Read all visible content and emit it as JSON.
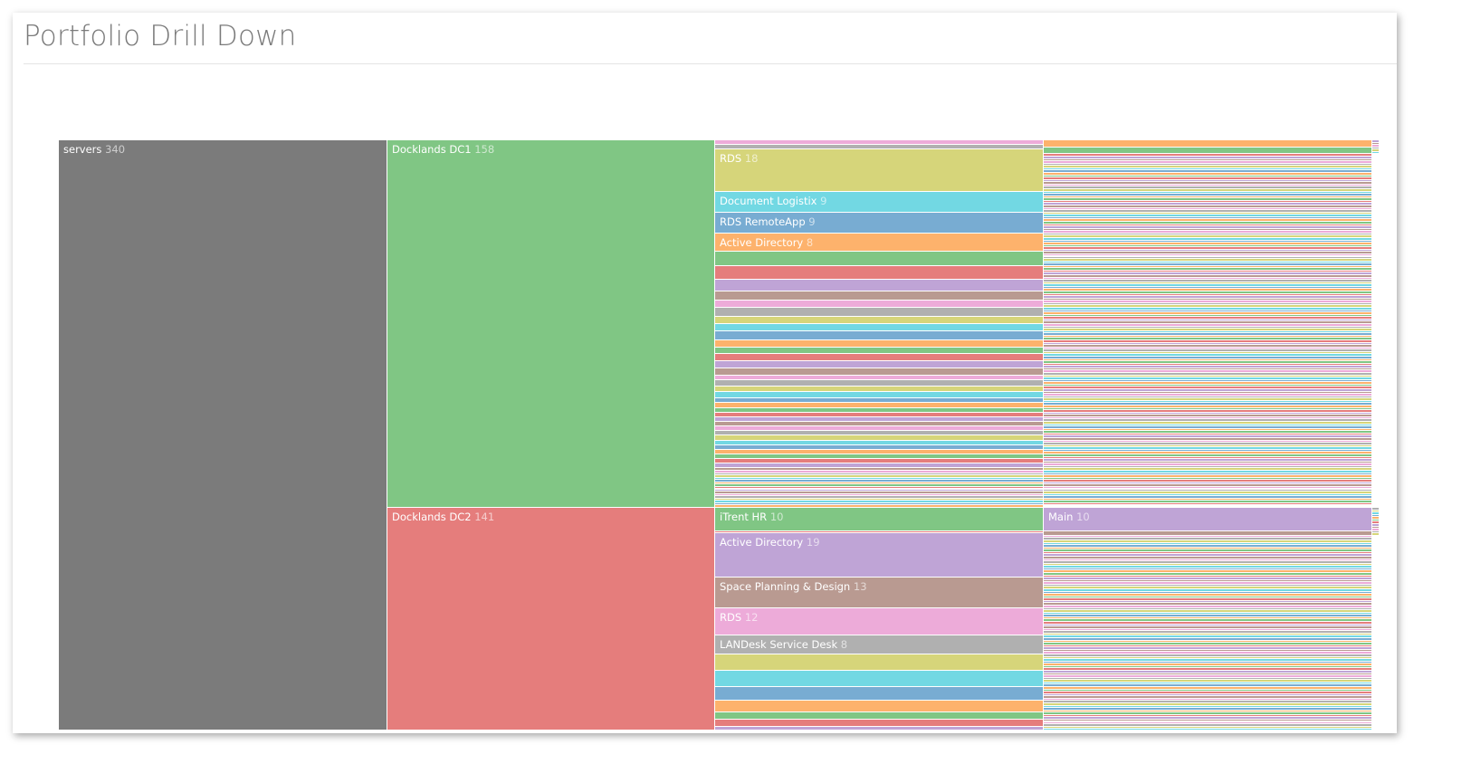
{
  "page": {
    "title": "Portfolio Drill Down"
  },
  "chart_data": {
    "type": "icicle",
    "title": "Portfolio Drill Down",
    "palette": [
      "#edabd9",
      "#b0b0b0",
      "#d6d57a",
      "#72d8e3",
      "#78acd2",
      "#fdb26c",
      "#80c684",
      "#e57d7c",
      "#bfa4d6",
      "#b99a91"
    ],
    "root": {
      "name": "servers",
      "value": 340,
      "color": "#7b7b7b"
    },
    "children": [
      {
        "name": "Docklands DC1",
        "value": 158,
        "color": "#80c684",
        "col3_start": 0,
        "col3": [
          {
            "value": 2
          },
          {
            "value": 2
          },
          {
            "name": "RDS",
            "value": 18
          },
          {
            "name": "Document Logistix",
            "value": 9
          },
          {
            "name": "RDS RemoteApp",
            "value": 9
          },
          {
            "name": "Active Directory",
            "value": 8
          },
          {
            "value": 6
          },
          {
            "value": 6
          },
          {
            "value": 5
          },
          {
            "value": 4
          },
          {
            "value": 3
          },
          {
            "value": 4
          },
          {
            "value": 3
          },
          {
            "value": 3
          },
          {
            "value": 4
          },
          {
            "value": 3
          },
          {
            "value": 3
          },
          {
            "value": 3
          },
          {
            "value": 3
          },
          {
            "value": 3
          },
          {
            "value": 2
          },
          {
            "value": 3
          },
          {
            "value": 2
          },
          {
            "value": 3
          },
          {
            "value": 2
          },
          {
            "value": 2
          },
          {
            "value": 2
          },
          {
            "value": 2
          },
          {
            "value": 2
          },
          {
            "value": 2
          },
          {
            "value": 2
          },
          {
            "value": 2
          },
          {
            "value": 2
          },
          {
            "value": 2
          },
          {
            "value": 2
          },
          {
            "value": 2
          },
          {
            "value": 2
          },
          {
            "value": 2
          },
          {
            "value": 2
          },
          {
            "value": 1
          },
          {
            "value": 1
          },
          {
            "value": 1
          },
          {
            "value": 1
          },
          {
            "value": 1
          },
          {
            "value": 1
          },
          {
            "value": 1
          },
          {
            "value": 1
          },
          {
            "value": 1
          },
          {
            "value": 1
          },
          {
            "value": 1
          },
          {
            "value": 1
          },
          {
            "value": 1
          },
          {
            "value": 1
          },
          {
            "value": 1
          },
          {
            "value": 1
          },
          {
            "value": 1
          }
        ],
        "col4_start": 5,
        "col4": [
          3,
          3,
          1,
          1,
          1,
          1,
          1,
          1,
          1,
          1,
          1,
          1,
          1,
          1,
          1,
          1,
          1,
          1,
          1,
          1,
          1,
          1,
          1,
          1,
          1,
          1,
          1,
          1,
          1,
          1,
          1,
          1,
          1,
          1,
          1,
          1,
          1,
          1,
          1,
          1,
          1,
          1,
          1,
          1,
          1,
          1,
          1,
          1,
          1,
          1,
          1,
          1,
          1,
          1,
          1,
          1,
          1,
          1,
          1,
          1,
          1,
          1,
          1,
          1,
          1,
          1,
          1,
          1,
          1,
          1,
          1,
          1,
          1,
          1,
          1,
          1,
          1,
          1,
          1,
          1,
          1,
          1,
          1,
          1,
          1,
          1,
          1,
          1,
          1,
          1,
          1,
          1,
          1,
          1,
          1,
          1,
          1,
          1,
          1,
          1,
          1,
          1,
          1,
          1,
          1,
          1,
          1,
          1,
          1,
          1,
          1,
          1,
          1,
          1,
          1,
          1,
          1,
          1,
          1,
          1,
          1,
          1,
          1,
          1,
          1,
          1,
          1,
          1,
          1,
          1,
          1,
          1,
          1,
          1,
          1,
          1,
          1,
          1,
          1,
          1,
          1,
          1,
          1,
          1,
          1,
          1,
          1,
          1,
          1,
          1,
          1,
          1,
          1
        ],
        "col5": [
          1,
          1,
          1,
          1,
          1,
          1
        ]
      },
      {
        "name": "Docklands DC2",
        "value": 141,
        "color": "#e57d7c",
        "col3_start": 6,
        "col3": [
          {
            "name": "iTrent HR",
            "value": 10
          },
          {
            "value": 1
          },
          {
            "name": "Active Directory",
            "value": 19
          },
          {
            "name": "Space Planning & Design",
            "value": 13
          },
          {
            "name": "RDS",
            "value": 12
          },
          {
            "name": "LANDesk Service Desk",
            "value": 8
          },
          {
            "value": 7
          },
          {
            "value": 7
          },
          {
            "value": 6
          },
          {
            "value": 5
          },
          {
            "value": 3
          },
          {
            "value": 3
          },
          {
            "value": 3
          },
          {
            "value": 3
          },
          {
            "value": 3
          },
          {
            "value": 3
          },
          {
            "value": 3
          },
          {
            "value": 3
          },
          {
            "value": 2
          },
          {
            "value": 2
          },
          {
            "value": 2
          },
          {
            "value": 2
          },
          {
            "value": 2
          },
          {
            "value": 2
          },
          {
            "value": 2
          },
          {
            "value": 2
          },
          {
            "value": 2
          },
          {
            "value": 2
          },
          {
            "value": 1
          },
          {
            "value": 1
          },
          {
            "value": 1
          },
          {
            "value": 1
          },
          {
            "value": 1
          },
          {
            "value": 1
          },
          {
            "value": 1
          },
          {
            "value": 1
          },
          {
            "value": 1
          }
        ],
        "col4_start": 8,
        "col4_labels": [
          {
            "index": 0,
            "name": "Main"
          }
        ],
        "col4": [
          10,
          2,
          1,
          1,
          1,
          1,
          1,
          1,
          1,
          1,
          1,
          1,
          1,
          1,
          1,
          1,
          1,
          1,
          1,
          1,
          1,
          1,
          1,
          1,
          1,
          1,
          1,
          1,
          1,
          1,
          1,
          1,
          1,
          1,
          1,
          1,
          1,
          1,
          1,
          1,
          1,
          1,
          1,
          1,
          1,
          1,
          1,
          1,
          1,
          1,
          1,
          1,
          1,
          1,
          1,
          1,
          1,
          1,
          1,
          1,
          1,
          1,
          1,
          1,
          1,
          1,
          1,
          1,
          1,
          1,
          1,
          1,
          1,
          1,
          1,
          1,
          1,
          1,
          1,
          1,
          1,
          1,
          1,
          1,
          1,
          1,
          1,
          1,
          1,
          1,
          1,
          1,
          1,
          1,
          1,
          1,
          1,
          1,
          1,
          1,
          1,
          1,
          1,
          1,
          1,
          1,
          1,
          1,
          1,
          1,
          1,
          1,
          1,
          1,
          1,
          1,
          1,
          1,
          1,
          1,
          1,
          1,
          1,
          1,
          1,
          1,
          1,
          1,
          1,
          1,
          1
        ],
        "col5": [
          1,
          1,
          1,
          1,
          1,
          1,
          1,
          1,
          1,
          1,
          1,
          1
        ]
      }
    ]
  }
}
